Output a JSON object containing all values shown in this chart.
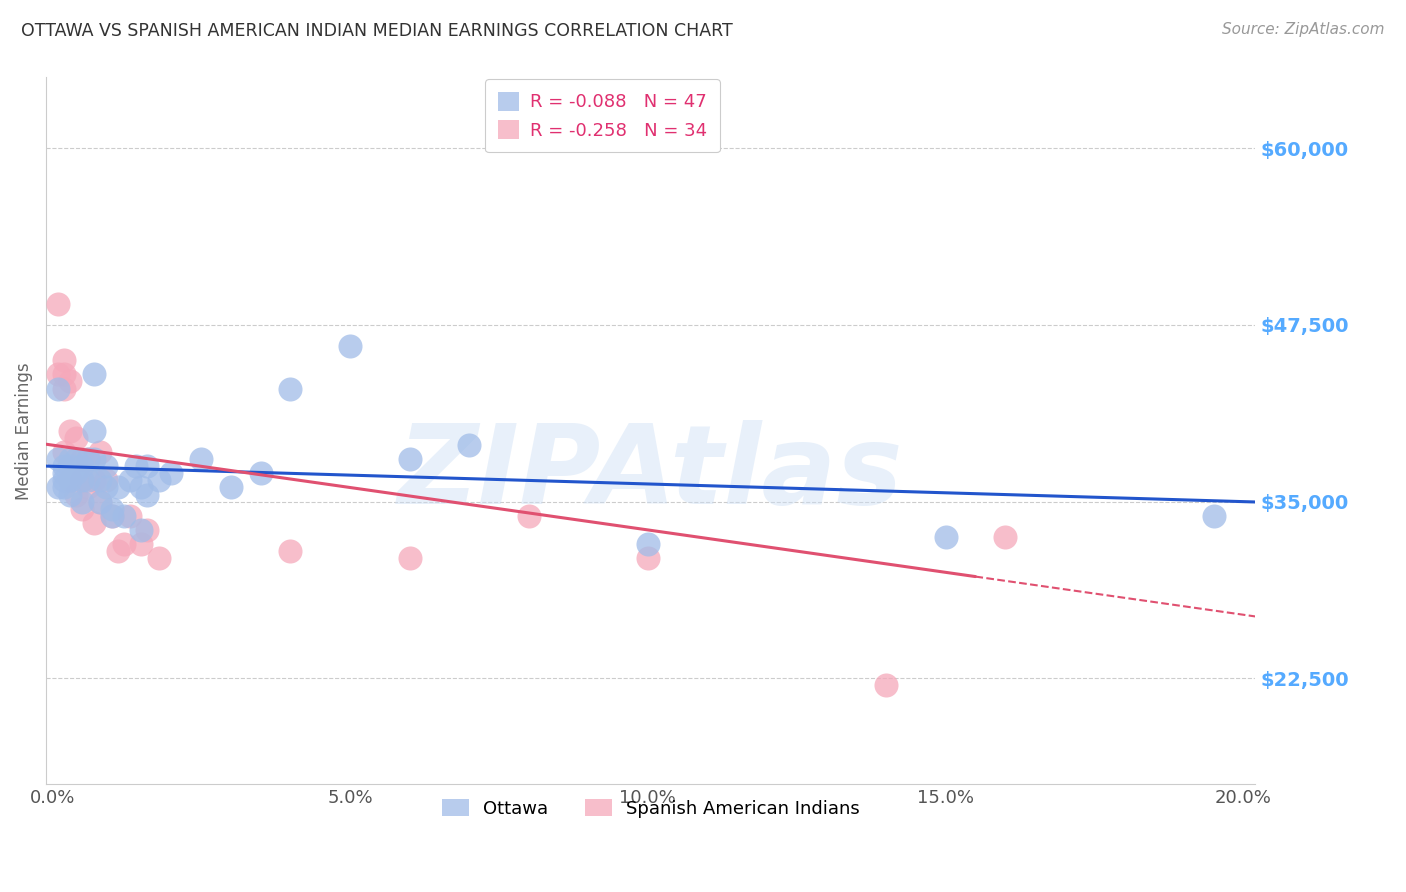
{
  "title": "OTTAWA VS SPANISH AMERICAN INDIAN MEDIAN EARNINGS CORRELATION CHART",
  "source": "Source: ZipAtlas.com",
  "ylabel": "Median Earnings",
  "xlabel_ticks": [
    "0.0%",
    "5.0%",
    "10.0%",
    "15.0%",
    "20.0%"
  ],
  "xlabel_vals": [
    0.0,
    0.05,
    0.1,
    0.15,
    0.2
  ],
  "ytick_labels": [
    "$22,500",
    "$35,000",
    "$47,500",
    "$60,000"
  ],
  "ytick_vals": [
    22500,
    35000,
    47500,
    60000
  ],
  "ylim": [
    15000,
    65000
  ],
  "xlim": [
    -0.001,
    0.202
  ],
  "watermark": "ZIPAtlas",
  "ottawa_color": "#a0bce8",
  "sai_color": "#f5a8ba",
  "ottawa_line_color": "#2255cc",
  "sai_line_color": "#e05070",
  "grid_color": "#cccccc",
  "ytick_label_color": "#55aaff",
  "title_color": "#333333",
  "source_color": "#999999",
  "ottawa_R": -0.088,
  "sai_R": -0.258,
  "ottawa_N": 47,
  "sai_N": 34,
  "ottawa_x": [
    0.001,
    0.001,
    0.001,
    0.002,
    0.002,
    0.002,
    0.002,
    0.003,
    0.003,
    0.003,
    0.003,
    0.004,
    0.004,
    0.005,
    0.005,
    0.005,
    0.006,
    0.006,
    0.007,
    0.007,
    0.007,
    0.008,
    0.008,
    0.009,
    0.009,
    0.01,
    0.01,
    0.011,
    0.012,
    0.013,
    0.014,
    0.015,
    0.015,
    0.016,
    0.016,
    0.018,
    0.02,
    0.025,
    0.03,
    0.035,
    0.04,
    0.05,
    0.06,
    0.07,
    0.1,
    0.15,
    0.195
  ],
  "ottawa_y": [
    36000,
    38000,
    43000,
    37500,
    37000,
    36500,
    36000,
    38000,
    37500,
    36500,
    35500,
    38000,
    37000,
    37500,
    36500,
    35000,
    38000,
    36500,
    44000,
    40000,
    38000,
    36500,
    35000,
    37500,
    36000,
    34500,
    34000,
    36000,
    34000,
    36500,
    37500,
    36000,
    33000,
    37500,
    35500,
    36500,
    37000,
    38000,
    36000,
    37000,
    43000,
    46000,
    38000,
    39000,
    32000,
    32500,
    34000
  ],
  "sai_x": [
    0.001,
    0.001,
    0.002,
    0.002,
    0.002,
    0.002,
    0.003,
    0.003,
    0.003,
    0.004,
    0.004,
    0.005,
    0.005,
    0.005,
    0.006,
    0.006,
    0.007,
    0.007,
    0.008,
    0.008,
    0.009,
    0.01,
    0.011,
    0.012,
    0.013,
    0.015,
    0.016,
    0.018,
    0.04,
    0.06,
    0.08,
    0.1,
    0.14,
    0.16
  ],
  "sai_y": [
    49000,
    44000,
    45000,
    44000,
    43000,
    38500,
    43500,
    40000,
    36500,
    39500,
    35500,
    38000,
    36500,
    34500,
    38000,
    36000,
    36500,
    33500,
    38500,
    35000,
    36500,
    34000,
    31500,
    32000,
    34000,
    32000,
    33000,
    31000,
    31500,
    31000,
    34000,
    31000,
    22000,
    32500
  ]
}
